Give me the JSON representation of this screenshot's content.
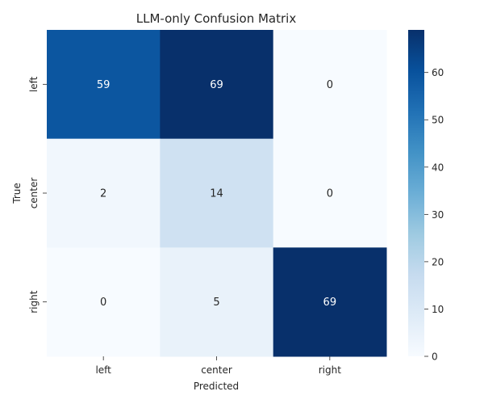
{
  "chart_data": {
    "type": "heatmap",
    "title": "LLM-only Confusion Matrix",
    "xlabel": "Predicted",
    "ylabel": "True",
    "x_categories": [
      "left",
      "center",
      "right"
    ],
    "y_categories": [
      "left",
      "center",
      "right"
    ],
    "values": [
      [
        59,
        69,
        0
      ],
      [
        2,
        14,
        0
      ],
      [
        0,
        5,
        69
      ]
    ],
    "colormap": "Blues",
    "color_min": 0,
    "color_max": 69,
    "colorbar_ticks": [
      0,
      10,
      20,
      30,
      40,
      50,
      60
    ],
    "annotations": true
  }
}
